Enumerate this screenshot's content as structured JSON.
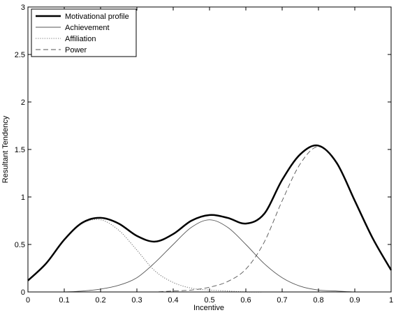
{
  "chart_data": {
    "type": "line",
    "title": "",
    "xlabel": "Incentive",
    "ylabel": "Resultant Tendency",
    "xlim": [
      0,
      1
    ],
    "ylim": [
      0,
      3
    ],
    "x_ticks": [
      "0",
      "0.1",
      "0.2",
      "0.3",
      "0.4",
      "0.5",
      "0.6",
      "0.7",
      "0.8",
      "0.9",
      "1"
    ],
    "y_ticks": [
      "0",
      "0.5",
      "1",
      "1.5",
      "2",
      "2.5",
      "3"
    ],
    "grid": false,
    "legend_position": "top-left",
    "x": [
      0,
      0.05,
      0.1,
      0.15,
      0.2,
      0.25,
      0.3,
      0.35,
      0.4,
      0.45,
      0.5,
      0.55,
      0.6,
      0.65,
      0.7,
      0.75,
      0.8,
      0.85,
      0.9,
      0.95,
      1
    ],
    "series": [
      {
        "name": "Motivational profile",
        "style": "solid-thick",
        "color": "#000000",
        "values": [
          0.12,
          0.3,
          0.55,
          0.73,
          0.78,
          0.72,
          0.59,
          0.53,
          0.61,
          0.75,
          0.81,
          0.78,
          0.72,
          0.82,
          1.18,
          1.45,
          1.54,
          1.36,
          0.96,
          0.56,
          0.23
        ]
      },
      {
        "name": "Achievement",
        "style": "solid-thin",
        "color": "#555555",
        "values": [
          0.0,
          0.0,
          0.0,
          0.01,
          0.03,
          0.07,
          0.15,
          0.31,
          0.5,
          0.68,
          0.76,
          0.68,
          0.5,
          0.3,
          0.15,
          0.06,
          0.02,
          0.01,
          0.0,
          0.0,
          0.0
        ]
      },
      {
        "name": "Affiliation",
        "style": "dotted",
        "color": "#777777",
        "values": [
          0.12,
          0.3,
          0.55,
          0.72,
          0.76,
          0.65,
          0.44,
          0.22,
          0.1,
          0.04,
          0.02,
          0.01,
          0.0,
          0.0,
          0.0,
          0.0,
          0.0,
          0.0,
          0.0,
          0.0,
          0.0
        ]
      },
      {
        "name": "Power",
        "style": "dashed",
        "color": "#555555",
        "values": [
          0.0,
          0.0,
          0.0,
          0.0,
          0.0,
          0.0,
          0.0,
          0.0,
          0.01,
          0.02,
          0.05,
          0.11,
          0.24,
          0.52,
          0.96,
          1.35,
          1.53,
          1.35,
          0.96,
          0.56,
          0.23
        ]
      }
    ]
  }
}
